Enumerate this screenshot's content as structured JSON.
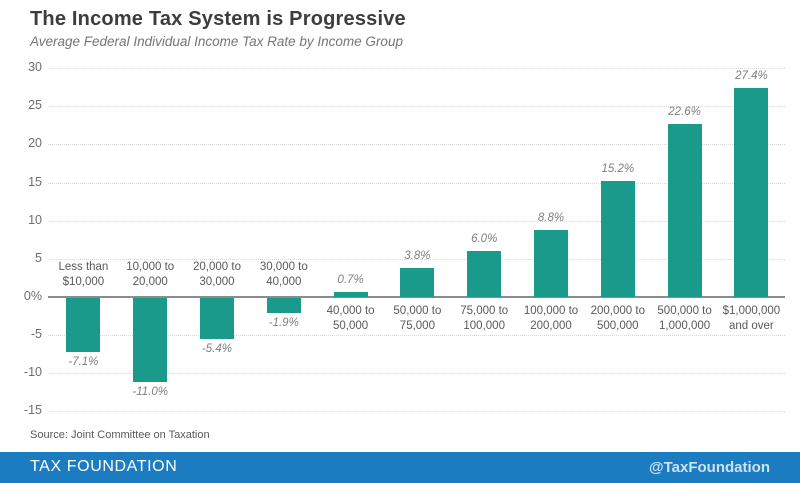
{
  "header": {
    "title": "The Income Tax System is Progressive",
    "subtitle": "Average Federal Individual Income Tax Rate by Income Group"
  },
  "chart_data": {
    "type": "bar",
    "title": "The Income Tax System is Progressive",
    "subtitle": "Average Federal Individual Income Tax Rate by Income Group",
    "categories": [
      "Less than $10,000",
      "10,000 to 20,000",
      "20,000 to 30,000",
      "30,000 to 40,000",
      "40,000 to 50,000",
      "50,000 to 75,000",
      "75,000 to 100,000",
      "100,000 to 200,000",
      "200,000 to 500,000",
      "500,000 to 1,000,000",
      "$1,000,000 and over"
    ],
    "values": [
      -7.1,
      -11.0,
      -5.4,
      -1.9,
      0.7,
      3.8,
      6.0,
      8.8,
      15.2,
      22.6,
      27.4
    ],
    "value_labels": [
      "-7.1%",
      "-11.0%",
      "-5.4%",
      "-1.9%",
      "0.7%",
      "3.8%",
      "6.0%",
      "8.8%",
      "15.2%",
      "22.6%",
      "27.4%"
    ],
    "ytick_values": [
      30,
      25,
      20,
      15,
      10,
      5,
      0,
      -5,
      -10,
      -15
    ],
    "ytick_labels": [
      "30",
      "25",
      "20",
      "15",
      "10",
      "5",
      "0%",
      "-5",
      "-10",
      "-15"
    ],
    "ylim": [
      -15,
      30
    ],
    "grid": true,
    "legend_position": "none",
    "bar_color": "#1a9a8a",
    "zero_line_color": "#8c8c8c"
  },
  "source": {
    "text": "Source: Joint Committee on Taxation"
  },
  "footer": {
    "brand": "TAX FOUNDATION",
    "handle": "@TaxFoundation",
    "bg_color": "#1b7cc1"
  }
}
